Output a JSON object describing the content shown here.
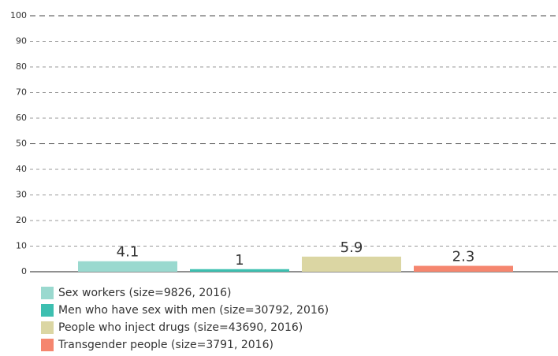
{
  "chart_data": {
    "type": "bar",
    "categories": [
      null
    ],
    "series": [
      {
        "name": "Sex workers (size=9826, 2016)",
        "color": "#9ad9cf",
        "values": [
          4.1
        ]
      },
      {
        "name": "Men who have sex with men (size=30792, 2016)",
        "color": "#3dbfb0",
        "values": [
          1
        ]
      },
      {
        "name": "People who inject drugs (size=43690, 2016)",
        "color": "#dbd6a3",
        "values": [
          5.9
        ]
      },
      {
        "name": "Transgender people (size=3791, 2016)",
        "color": "#f5866f",
        "values": [
          2.3
        ]
      }
    ],
    "ylim": [
      0,
      100
    ],
    "yticks": [
      0,
      10,
      20,
      30,
      40,
      50,
      60,
      70,
      80,
      90,
      100
    ],
    "grid": true
  }
}
